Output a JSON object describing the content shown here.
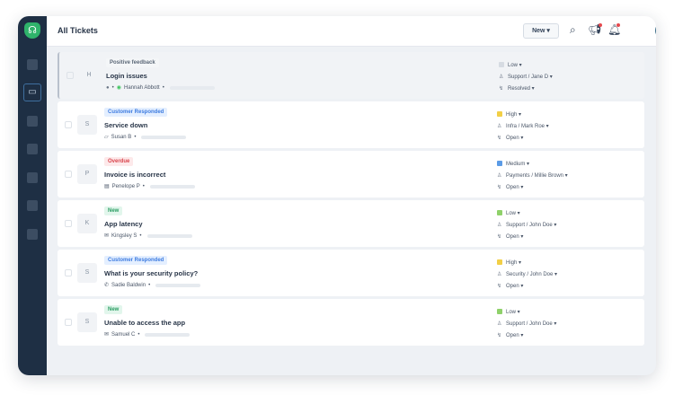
{
  "header": {
    "title": "All Tickets",
    "new_label": "New ▾"
  },
  "colors": {
    "sidebar": "#1e2f44",
    "brand": "#2fb36b",
    "low": "#8fd16a",
    "high": "#f2cf46",
    "medium": "#5b9be6"
  },
  "tickets": [
    {
      "initial": "H",
      "tag": "Positive feedback",
      "tag_bg": "#f4f6f8",
      "tag_fg": "#5c6878",
      "subject": "Login issues",
      "channel": "whatsapp-icon",
      "contact": "Hannah Abbott",
      "priority": "Low ▾",
      "priority_color": "#d6dbe2",
      "group": "Support / Jane D ▾",
      "status": "Resolved ▾",
      "selected": true
    },
    {
      "initial": "S",
      "tag": "Customer Responded",
      "tag_bg": "#e4efff",
      "tag_fg": "#3d7be0",
      "subject": "Service down",
      "channel": "chat-icon",
      "contact": "Susan B",
      "priority": "High ▾",
      "priority_color": "#f2cf46",
      "group": "Infra / Mark Roe ▾",
      "status": "Open ▾"
    },
    {
      "initial": "P",
      "tag": "Overdue",
      "tag_bg": "#fde9ea",
      "tag_fg": "#d9434b",
      "subject": "Invoice is incorrect",
      "channel": "form-icon",
      "contact": "Penelope P",
      "priority": "Medium ▾",
      "priority_color": "#5b9be6",
      "group": "Payments / Millie Brown ▾",
      "status": "Open ▾"
    },
    {
      "initial": "K",
      "tag": "New",
      "tag_bg": "#e2f6ec",
      "tag_fg": "#2a9d62",
      "subject": "App latency",
      "channel": "email-icon",
      "contact": "Kingsley S",
      "priority": "Low ▾",
      "priority_color": "#8fd16a",
      "group": "Support / John Doe ▾",
      "status": "Open ▾"
    },
    {
      "initial": "S",
      "tag": "Customer Responded",
      "tag_bg": "#e4efff",
      "tag_fg": "#3d7be0",
      "subject": "What is your security policy?",
      "channel": "phone-icon",
      "contact": "Sadie Baldwin",
      "priority": "High ▾",
      "priority_color": "#f2cf46",
      "group": "Security / John Doe ▾",
      "status": "Open ▾"
    },
    {
      "initial": "S",
      "tag": "New",
      "tag_bg": "#e2f6ec",
      "tag_fg": "#2a9d62",
      "subject": "Unable to access the app",
      "channel": "email-icon",
      "contact": "Samuel C",
      "priority": "Low ▾",
      "priority_color": "#8fd16a",
      "group": "Support / John Doe ▾",
      "status": "Open ▾"
    }
  ]
}
